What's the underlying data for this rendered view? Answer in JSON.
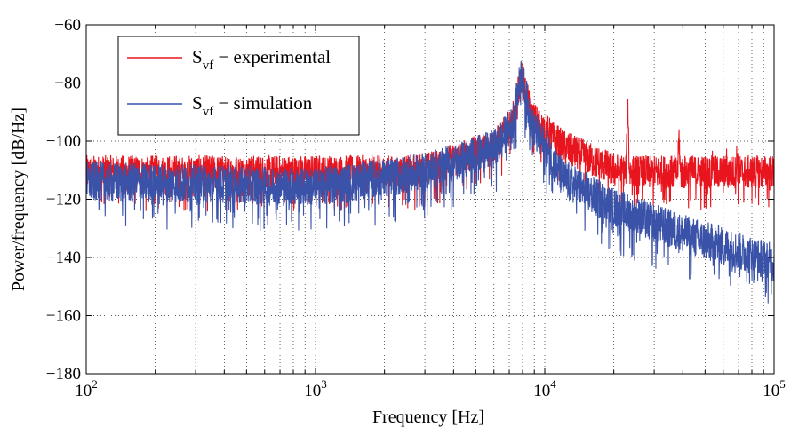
{
  "chart_data": {
    "type": "line",
    "xlabel": "Frequency [Hz]",
    "ylabel": "Power/frequency [dB/Hz]",
    "xscale": "log",
    "xlim": [
      100,
      100000
    ],
    "ylim": [
      -180,
      -60
    ],
    "grid": true,
    "legend_position": "top-left",
    "x_ticks": [
      {
        "value": 100,
        "base": "10",
        "exp": "2"
      },
      {
        "value": 1000,
        "base": "10",
        "exp": "3"
      },
      {
        "value": 10000,
        "base": "10",
        "exp": "4"
      },
      {
        "value": 100000,
        "base": "10",
        "exp": "5"
      }
    ],
    "y_ticks": [
      -60,
      -80,
      -100,
      -120,
      -140,
      -160,
      -180
    ],
    "y_tick_labels": [
      "−60",
      "−80",
      "−100",
      "−120",
      "−140",
      "−160",
      "−180"
    ],
    "series": [
      {
        "name": "experimental",
        "legend_main": "S",
        "legend_sub": "vf",
        "legend_rest": " − experimental",
        "color": "#e8141e",
        "spread_db": 6,
        "envelope": {
          "x": [
            100,
            300,
            1000,
            3000,
            6000,
            7200,
            7900,
            8800,
            12000,
            20000,
            40000,
            100000
          ],
          "y": [
            -115,
            -115,
            -115,
            -110,
            -102,
            -94,
            -78,
            -92,
            -102,
            -110,
            -114,
            -120
          ]
        },
        "peaks": [
          {
            "x": 23000,
            "y": -87
          },
          {
            "x": 38500,
            "y": -99
          },
          {
            "x": 54000,
            "y": -105
          },
          {
            "x": 62000,
            "y": -108
          },
          {
            "x": 69000,
            "y": -104
          },
          {
            "x": 85000,
            "y": -111
          }
        ]
      },
      {
        "name": "simulation",
        "legend_main": "S",
        "legend_sub": "vf",
        "legend_rest": " − simulation",
        "color": "#3a52a8",
        "spread_db": 7,
        "envelope": {
          "x": [
            100,
            300,
            1000,
            3000,
            6000,
            7200,
            7900,
            8800,
            12000,
            20000,
            40000,
            100000
          ],
          "y": [
            -114,
            -115,
            -116,
            -111,
            -103,
            -95,
            -77,
            -95,
            -113,
            -123,
            -132,
            -142
          ]
        },
        "peaks": []
      }
    ]
  }
}
